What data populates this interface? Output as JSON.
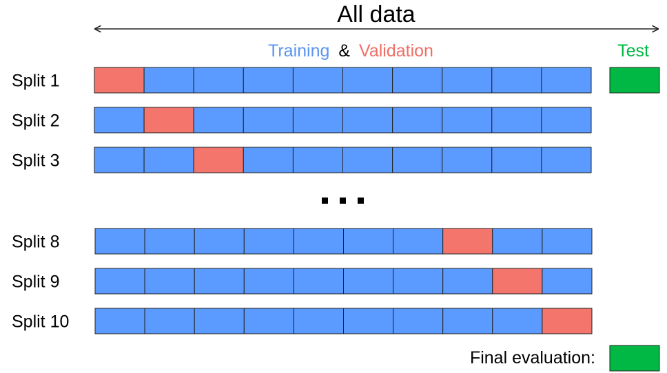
{
  "title": "All data",
  "legend": {
    "training": "Training",
    "ampersand": "&",
    "validation": "Validation",
    "test": "Test"
  },
  "colors": {
    "training": "#5B9BFF",
    "validation": "#F4756C",
    "test": "#00B843",
    "text_training": "#5B95F0",
    "text_validation": "#EE6F66",
    "text_test": "#00B843",
    "border": "#222222"
  },
  "folds_per_split": 10,
  "splits": [
    {
      "label": "Split 1",
      "validation_fold": 1
    },
    {
      "label": "Split 2",
      "validation_fold": 2
    },
    {
      "label": "Split 3",
      "validation_fold": 3
    },
    {
      "label": "Split 8",
      "validation_fold": 8
    },
    {
      "label": "Split 9",
      "validation_fold": 9
    },
    {
      "label": "Split 10",
      "validation_fold": 10
    }
  ],
  "ellipsis": "...",
  "final_evaluation_label": "Final evaluation:"
}
